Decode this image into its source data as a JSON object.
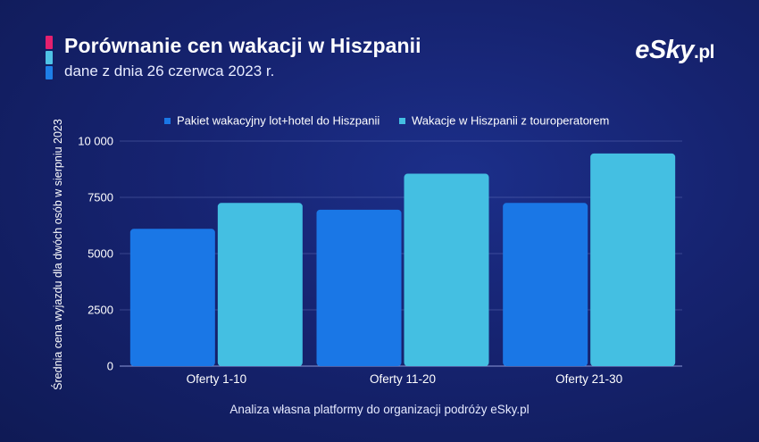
{
  "header": {
    "title": "Porównanie cen wakacji w Hiszpanii",
    "subtitle": "dane z dnia 26 czerwca 2023 r.",
    "accent_colors": [
      "#e4206e",
      "#4fc3e6",
      "#1e7fe8"
    ]
  },
  "logo": {
    "main": "eSky",
    "suffix": ".pl"
  },
  "footer": {
    "note": "Analiza własna platformy do organizacji podróży eSky.pl"
  },
  "chart_data": {
    "type": "bar",
    "title": "",
    "xlabel": "",
    "ylabel": "Średnia cena wyjazdu dla dwóch osób w sierpniu 2023",
    "categories": [
      "Oferty 1-10",
      "Oferty 11-20",
      "Oferty 21-30"
    ],
    "series": [
      {
        "name": "Pakiet wakacyjny lot+hotel do Hiszpanii",
        "color": "#1a77e6",
        "values": [
          6100,
          6950,
          7250
        ]
      },
      {
        "name": "Wakacje w Hiszpanii z touroperatorem",
        "color": "#44bfe2",
        "values": [
          7250,
          8550,
          9450
        ]
      }
    ],
    "ylim": [
      0,
      10000
    ],
    "yticks": [
      0,
      2500,
      5000,
      7500,
      10000
    ],
    "ytick_labels": [
      "0",
      "2500",
      "5000",
      "7500",
      "10 000"
    ],
    "grid": true,
    "legend": "top-center"
  }
}
